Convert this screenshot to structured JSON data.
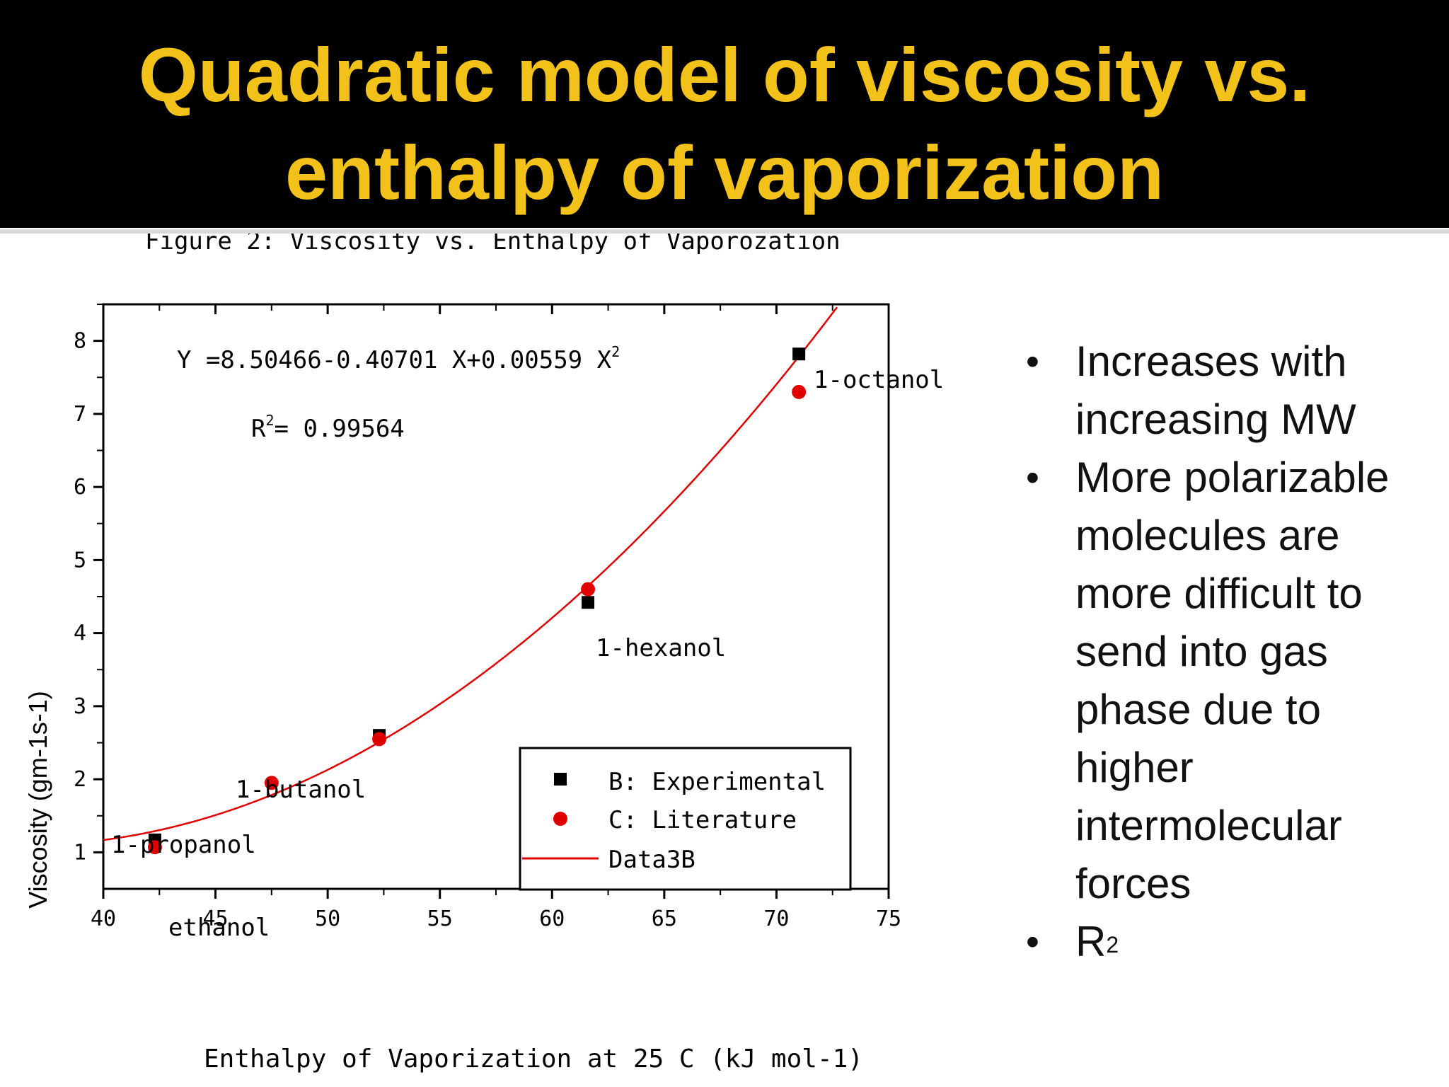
{
  "slide": {
    "title_line1": "Quadratic model of viscosity vs.",
    "title_line2": "enthalpy of vaporization",
    "bullets": [
      "Increases with increasing MW",
      "More polarizable molecules are more difficult to send into gas phase due to higher intermolecular forces"
    ],
    "bullet_r2_base": "R",
    "bullet_r2_sup": "2",
    "colors": {
      "title": "#f2c21b",
      "title_bg": "#000000",
      "fit": "#e00000",
      "literature": "#e00000",
      "experimental": "#000000"
    }
  },
  "chart_data": {
    "type": "scatter",
    "title": "Figure 2: Viscosity vs. Enthalpy of Vaporozation",
    "xlabel": "Enthalpy of Vaporization at 25 C (kJ mol-1)",
    "ylabel": "Viscosity (gm-1s-1)",
    "xlim": [
      40,
      75
    ],
    "ylim": [
      0.5,
      8.5
    ],
    "x_ticks": [
      40,
      45,
      50,
      55,
      60,
      65,
      70,
      75
    ],
    "y_ticks": [
      1,
      2,
      3,
      4,
      5,
      6,
      7,
      8
    ],
    "equation": "Y =8.50466-0.40701 X+0.00559 X",
    "equation_sup": "2",
    "r2_base": "R",
    "r2_sup": "2",
    "r2_value": "= 0.99564",
    "fit": {
      "a": 8.50466,
      "b": -0.40701,
      "c": 0.00559,
      "x_range": [
        40,
        75
      ]
    },
    "series": [
      {
        "name": "B: Experimental",
        "marker": "square",
        "color": "#000000",
        "points": [
          [
            42.3,
            1.17
          ],
          [
            52.3,
            2.6
          ],
          [
            61.6,
            4.42
          ],
          [
            71.0,
            7.82
          ]
        ]
      },
      {
        "name": "C: Literature",
        "marker": "circle",
        "color": "#e00000",
        "points": [
          [
            42.3,
            1.07
          ],
          [
            47.5,
            1.95
          ],
          [
            52.3,
            2.55
          ],
          [
            61.6,
            4.6
          ],
          [
            71.0,
            7.3
          ]
        ]
      }
    ],
    "fit_legend": "Data3B",
    "annotations": [
      "ethanol",
      "1-propanol",
      "1-butanol",
      "1-hexanol",
      "1-octanol"
    ],
    "legend_position": "bottom-right"
  }
}
